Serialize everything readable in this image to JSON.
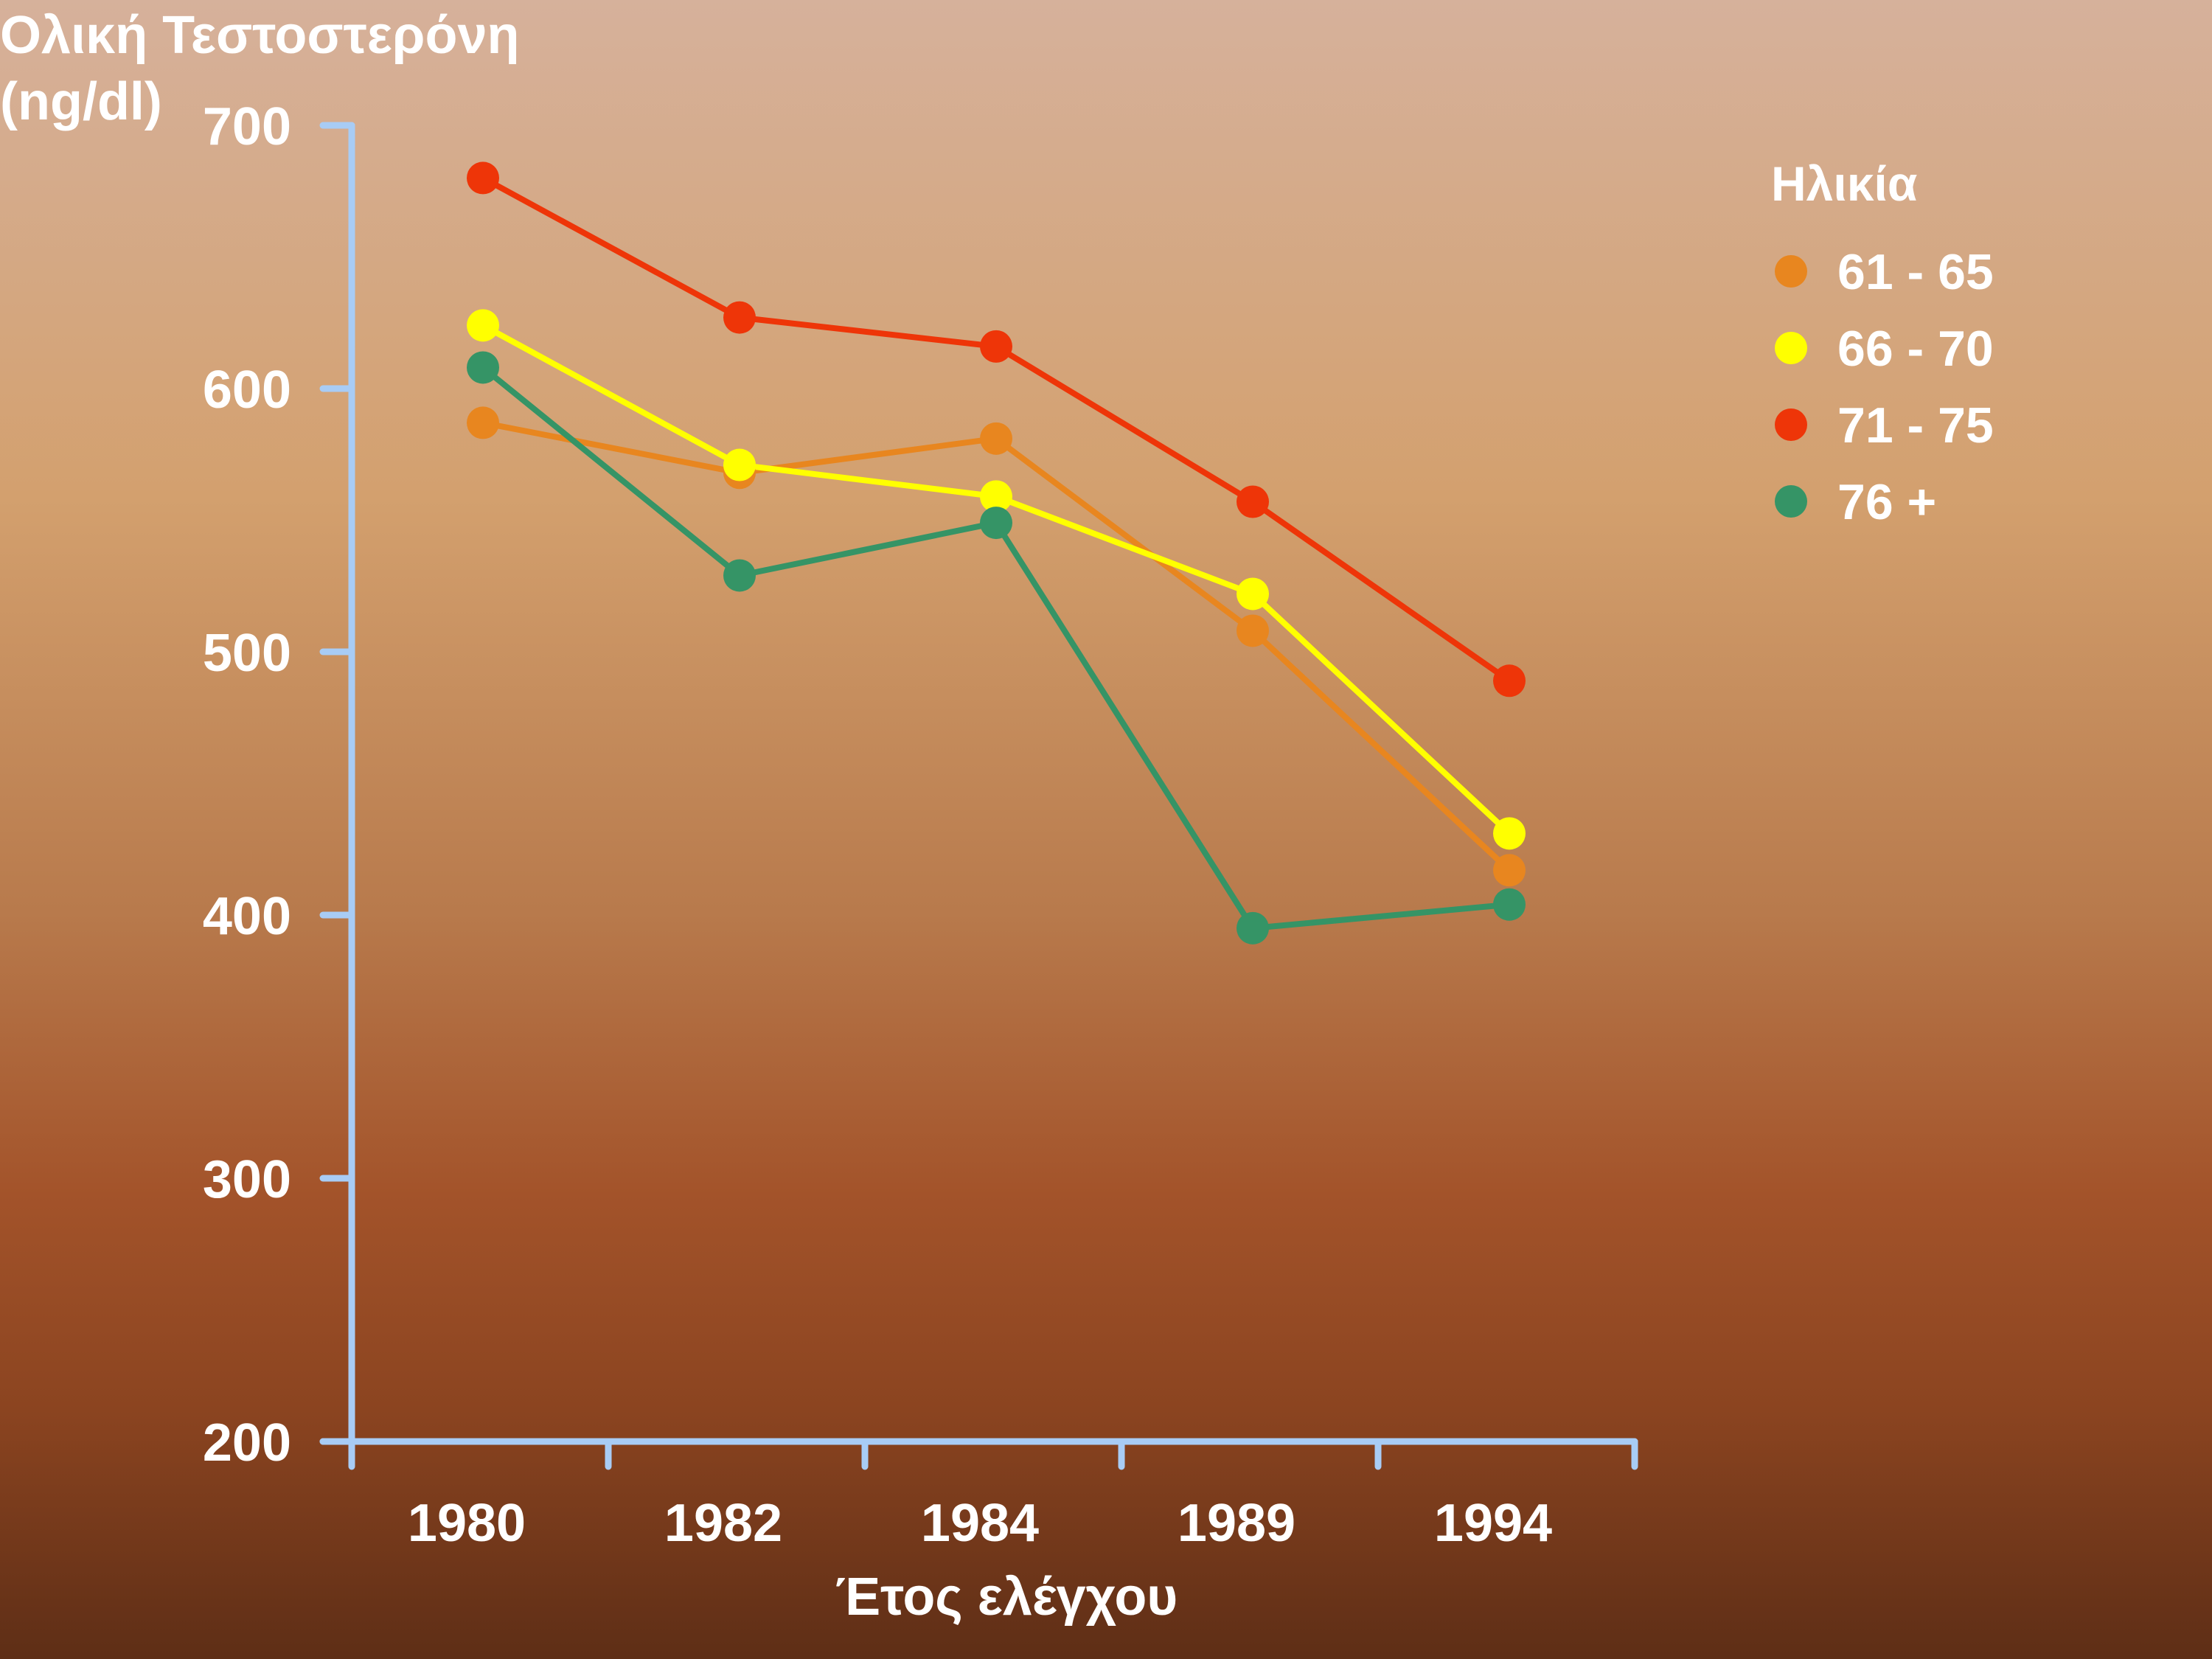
{
  "chart_data": {
    "type": "line",
    "ylabel_lines": [
      "Ολική Τεστοστερόνη",
      "(ng/dl)"
    ],
    "xlabel": "Έτος ελέγχου",
    "categories": [
      "1980",
      "1982",
      "1984",
      "1989",
      "1994"
    ],
    "ylim": [
      200,
      700
    ],
    "yticks": [
      700,
      600,
      500,
      400,
      300,
      200
    ],
    "grid": false,
    "legend_position": "top-right",
    "legend_title": "Ηλικία",
    "series": [
      {
        "name": "61 - 65",
        "color": "#e8861f",
        "values": [
          587,
          568,
          581,
          508,
          417
        ]
      },
      {
        "name": "66 - 70",
        "color": "#ffff00",
        "values": [
          624,
          571,
          559,
          522,
          431
        ]
      },
      {
        "name": "71 - 75",
        "color": "#ee3508",
        "values": [
          680,
          627,
          616,
          557,
          489
        ]
      },
      {
        "name": "76 +",
        "color": "#359466",
        "values": [
          608,
          529,
          549,
          395,
          404
        ]
      }
    ],
    "axis_color": "#a8ccf5"
  }
}
